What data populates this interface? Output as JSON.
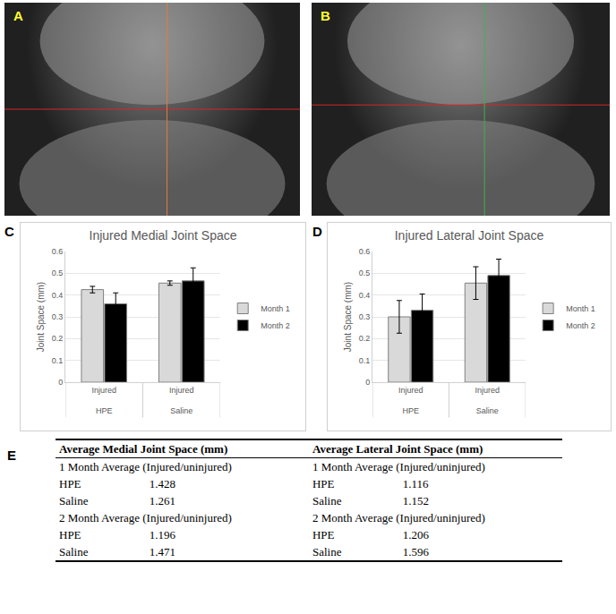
{
  "images": [
    {
      "panel": "A"
    },
    {
      "panel": "B"
    }
  ],
  "chart_data": [
    {
      "panel": "C",
      "type": "bar",
      "title": "Injured Medial Joint Space",
      "y_label": "Joint Space (mm)",
      "categories": [
        "Injured",
        "Injured"
      ],
      "groups": [
        "HPE",
        "Saline"
      ],
      "series": [
        {
          "name": "Month 1",
          "color": "#d9d9d9",
          "values": [
            0.425,
            0.455
          ],
          "errors": [
            0.015,
            0.01
          ]
        },
        {
          "name": "Month 2",
          "color": "#000000",
          "values": [
            0.36,
            0.465
          ],
          "errors": [
            0.05,
            0.06
          ]
        }
      ],
      "ylim": [
        0,
        0.6
      ],
      "yticks": [
        0,
        0.1,
        0.2,
        0.3,
        0.4,
        0.5,
        0.6
      ],
      "grid": true,
      "legend": "right"
    },
    {
      "panel": "D",
      "type": "bar",
      "title": "Injured Lateral Joint Space",
      "y_label": "Joint Space (mm)",
      "categories": [
        "Injured",
        "Injured"
      ],
      "groups": [
        "HPE",
        "Saline"
      ],
      "series": [
        {
          "name": "Month 1",
          "color": "#d9d9d9",
          "values": [
            0.3,
            0.455
          ],
          "errors": [
            0.075,
            0.075
          ]
        },
        {
          "name": "Month 2",
          "color": "#000000",
          "values": [
            0.33,
            0.49
          ],
          "errors": [
            0.075,
            0.075
          ]
        }
      ],
      "ylim": [
        0,
        0.6
      ],
      "yticks": [
        0,
        0.1,
        0.2,
        0.3,
        0.4,
        0.5,
        0.6
      ],
      "grid": true,
      "legend": "right"
    }
  ],
  "table": {
    "panel": "E",
    "columns": [
      {
        "head": "Average Medial Joint Space (mm)",
        "sections": [
          {
            "title": "1 Month Average (Injured/uninjured)",
            "rows": [
              [
                "HPE",
                1.428
              ],
              [
                "Saline",
                1.261
              ]
            ]
          },
          {
            "title": "2 Month Average (Injured/uninjured)",
            "rows": [
              [
                "HPE",
                1.196
              ],
              [
                "Saline",
                1.471
              ]
            ]
          }
        ]
      },
      {
        "head": "Average Lateral Joint Space (mm)",
        "sections": [
          {
            "title": "1 Month Average (Injured/uninjured)",
            "rows": [
              [
                "HPE",
                1.116
              ],
              [
                "Saline",
                1.152
              ]
            ]
          },
          {
            "title": "2 Month Average (Injured/uninjured)",
            "rows": [
              [
                "HPE",
                1.206
              ],
              [
                "Saline",
                1.596
              ]
            ]
          }
        ]
      }
    ]
  }
}
